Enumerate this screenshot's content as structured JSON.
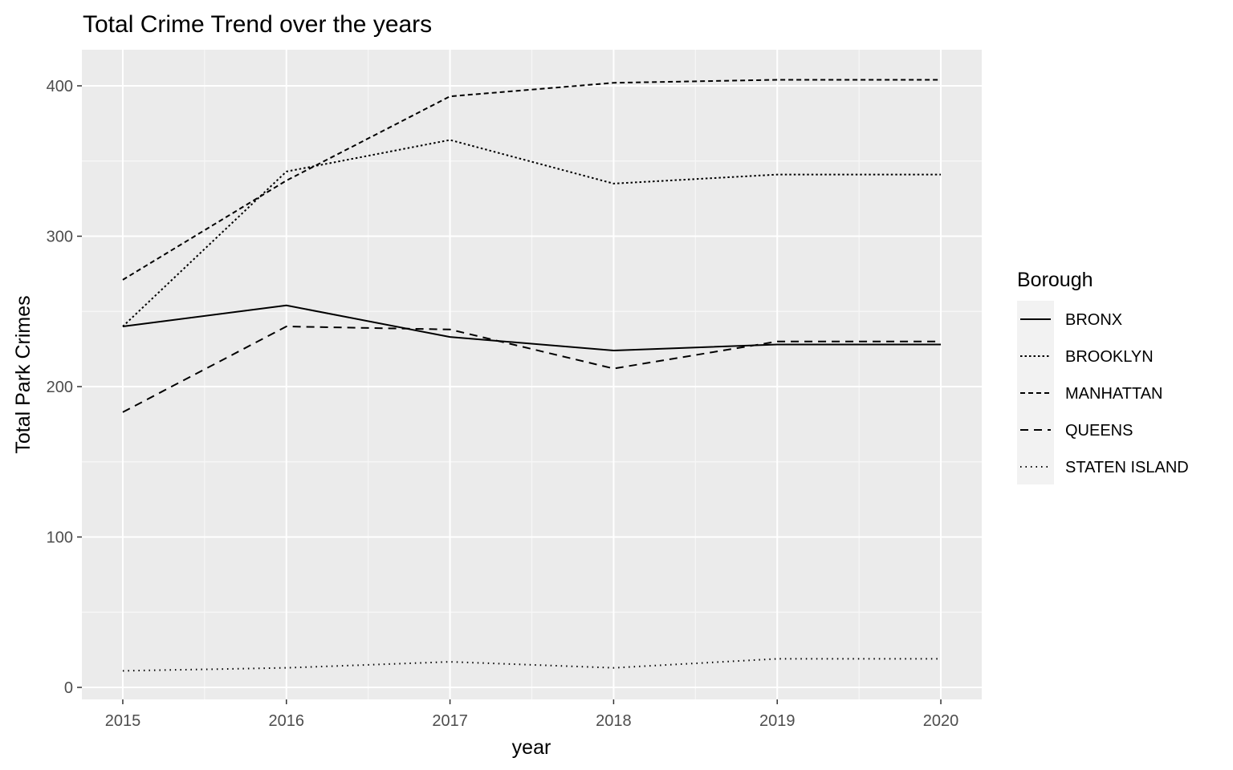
{
  "chart_data": {
    "type": "line",
    "title": "Total Crime Trend over the years",
    "xlabel": "year",
    "ylabel": "Total Park Crimes",
    "x": [
      2015,
      2016,
      2017,
      2018,
      2019,
      2020
    ],
    "x_ticks": [
      "2015",
      "2016",
      "2017",
      "2018",
      "2019",
      "2020"
    ],
    "xlim": [
      2014.75,
      2020.25
    ],
    "ylim": [
      -8,
      424
    ],
    "y_ticks": [
      0,
      100,
      200,
      300,
      400
    ],
    "y_tick_labels": [
      "0",
      "100",
      "200",
      "300",
      "400"
    ],
    "grid": true,
    "legend": {
      "title": "Borough",
      "position": "right"
    },
    "series": [
      {
        "name": "BRONX",
        "linetype": "solid",
        "values": [
          240,
          254,
          233,
          224,
          228,
          228
        ]
      },
      {
        "name": "BROOKLYN",
        "linetype": "dotted",
        "values": [
          240,
          343,
          364,
          335,
          341,
          341
        ]
      },
      {
        "name": "MANHATTAN",
        "linetype": "dashed",
        "values": [
          271,
          337,
          393,
          402,
          404,
          404
        ]
      },
      {
        "name": "QUEENS",
        "linetype": "longdash",
        "values": [
          183,
          240,
          238,
          212,
          230,
          230
        ]
      },
      {
        "name": "STATEN ISLAND",
        "linetype": "fine-dotted",
        "values": [
          11,
          13,
          17,
          13,
          19,
          19
        ]
      }
    ],
    "colors": {
      "panel_background": "#ebebeb",
      "grid_major": "#ffffff",
      "grid_minor": "#f7f7f7",
      "line": "#000000",
      "legend_key_background": "#f2f2f2",
      "tick_text": "#4d4d4d"
    }
  }
}
